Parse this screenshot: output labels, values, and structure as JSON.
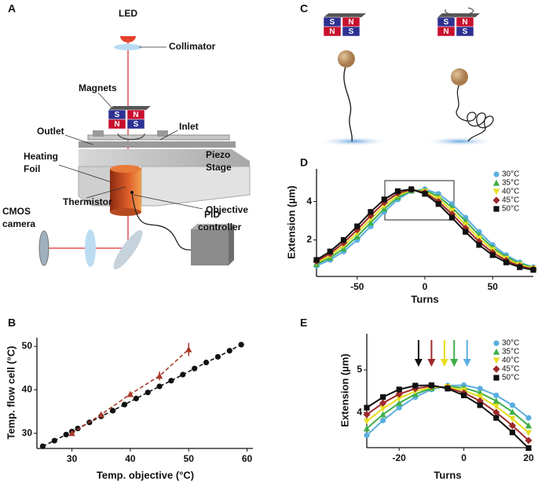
{
  "panel_a": {
    "label": "A",
    "led": "LED",
    "collimator": "Collimator",
    "magnets": "Magnets",
    "outlet": "Outlet",
    "inlet": "Inlet",
    "piezo_stage": [
      "Piezo",
      "Stage"
    ],
    "heating_foil": [
      "Heating",
      "Foil"
    ],
    "objective": "Objective",
    "thermistor": "Thermistor",
    "cmos_camera": [
      "CMOS",
      "camera"
    ],
    "pid_controller": [
      "PID",
      "controller"
    ],
    "magnet_letters": [
      "S",
      "N",
      "N",
      "S"
    ]
  },
  "panel_c": {
    "label": "C",
    "magnet_letters_left": [
      "S",
      "N",
      "N",
      "S"
    ],
    "magnet_letters_right": [
      "S",
      "N",
      "N",
      "S"
    ]
  },
  "chart_data": [
    {
      "type": "line",
      "label": "B",
      "x_label": "Temp. objective (°C)",
      "y_label": "Temp. flow cell (°C)",
      "xlim": [
        24,
        61
      ],
      "ylim": [
        26.5,
        52
      ],
      "xticks": [
        30,
        40,
        50,
        60
      ],
      "yticks": [
        30,
        40,
        50
      ],
      "series": [
        {
          "color": "#111111",
          "marker": "circle",
          "dash": true,
          "x": [
            25,
            27,
            29,
            30,
            31,
            33,
            35,
            37,
            39,
            41,
            43,
            45,
            47,
            49,
            51,
            53,
            55,
            57,
            59
          ],
          "values": [
            27.0,
            28.3,
            29.7,
            30.4,
            31.1,
            32.5,
            33.9,
            35.2,
            36.6,
            38.0,
            39.4,
            40.8,
            42.1,
            43.5,
            44.9,
            46.3,
            47.6,
            49.0,
            50.4
          ]
        },
        {
          "color": "#a83a2a",
          "marker": "triangle",
          "dash": true,
          "x": [
            30,
            35,
            40,
            45,
            50
          ],
          "values": [
            30.0,
            34.3,
            39.0,
            43.2,
            49.3
          ],
          "errors": [
            0.5,
            0.6,
            0.5,
            1.0,
            1.5
          ]
        }
      ]
    },
    {
      "type": "line",
      "label": "D",
      "x_label": "Turns",
      "y_label": "Extension (µm)",
      "xlim": [
        -80,
        80
      ],
      "ylim": [
        0.1,
        5.7
      ],
      "xticks": [
        -50,
        0,
        50
      ],
      "yticks": [
        2,
        4
      ],
      "x": [
        -80,
        -70,
        -60,
        -50,
        -40,
        -30,
        -20,
        -10,
        0,
        10,
        20,
        30,
        40,
        50,
        60,
        70,
        80
      ],
      "series": [
        {
          "name": "30°C",
          "color": "#5aaee0",
          "marker": "circle",
          "values": [
            0.66,
            0.96,
            1.4,
            2.0,
            2.71,
            3.46,
            4.11,
            4.54,
            4.64,
            4.4,
            3.87,
            3.16,
            2.42,
            1.74,
            1.21,
            0.83,
            0.58
          ]
        },
        {
          "name": "35°C",
          "color": "#3fae49",
          "marker": "triangle",
          "values": [
            0.74,
            1.07,
            1.55,
            2.18,
            2.9,
            3.62,
            4.22,
            4.57,
            4.58,
            4.27,
            3.69,
            2.98,
            2.25,
            1.61,
            1.12,
            0.77,
            0.55
          ]
        },
        {
          "name": "40°C",
          "color": "#e6dd1e",
          "marker": "triangle-down",
          "values": [
            0.81,
            1.18,
            1.7,
            2.36,
            3.09,
            3.79,
            4.33,
            4.59,
            4.52,
            4.14,
            3.52,
            2.79,
            2.08,
            1.48,
            1.02,
            0.71,
            0.51
          ]
        },
        {
          "name": "45°C",
          "color": "#9e2a2b",
          "marker": "diamond",
          "values": [
            0.89,
            1.29,
            1.85,
            2.53,
            3.27,
            3.95,
            4.43,
            4.62,
            4.46,
            4.0,
            3.34,
            2.61,
            1.91,
            1.34,
            0.93,
            0.64,
            0.48
          ]
        },
        {
          "name": "50°C",
          "color": "#111111",
          "marker": "square",
          "values": [
            0.96,
            1.4,
            2.0,
            2.71,
            3.46,
            4.11,
            4.54,
            4.64,
            4.4,
            3.87,
            3.16,
            2.42,
            1.74,
            1.21,
            0.83,
            0.58,
            0.44
          ]
        }
      ]
    },
    {
      "type": "line",
      "label": "E",
      "x_label": "Turns",
      "y_label": "Extension (µm)",
      "xlim": [
        -30,
        20
      ],
      "ylim": [
        3.17,
        5.85
      ],
      "xticks": [
        -20,
        0,
        20
      ],
      "yticks": [
        4,
        5
      ],
      "x": [
        -30,
        -25,
        -20,
        -15,
        -10,
        -5,
        0,
        5,
        10,
        15,
        20
      ],
      "series": [
        {
          "name": "30°C",
          "color": "#5aaee0",
          "marker": "circle",
          "peak": 1,
          "values": [
            3.46,
            3.81,
            4.11,
            4.36,
            4.54,
            4.63,
            4.64,
            4.56,
            4.4,
            4.17,
            3.87
          ]
        },
        {
          "name": "35°C",
          "color": "#3fae49",
          "marker": "triangle",
          "peak": -3,
          "values": [
            3.62,
            3.95,
            4.22,
            4.43,
            4.57,
            4.61,
            4.58,
            4.46,
            4.27,
            4.01,
            3.69
          ]
        },
        {
          "name": "40°C",
          "color": "#e6dd1e",
          "marker": "triangle-down",
          "peak": -6,
          "values": [
            3.79,
            4.09,
            4.33,
            4.5,
            4.59,
            4.6,
            4.52,
            4.37,
            4.14,
            3.85,
            3.52
          ]
        },
        {
          "name": "45°C",
          "color": "#9e2a2b",
          "marker": "diamond",
          "peak": -10,
          "values": [
            3.95,
            4.22,
            4.43,
            4.56,
            4.62,
            4.58,
            4.46,
            4.27,
            4.0,
            3.69,
            3.34
          ]
        },
        {
          "name": "50°C",
          "color": "#111111",
          "marker": "square",
          "peak": -14,
          "values": [
            4.11,
            4.36,
            4.54,
            4.63,
            4.64,
            4.56,
            4.4,
            4.17,
            3.87,
            3.53,
            3.16
          ]
        }
      ]
    }
  ]
}
